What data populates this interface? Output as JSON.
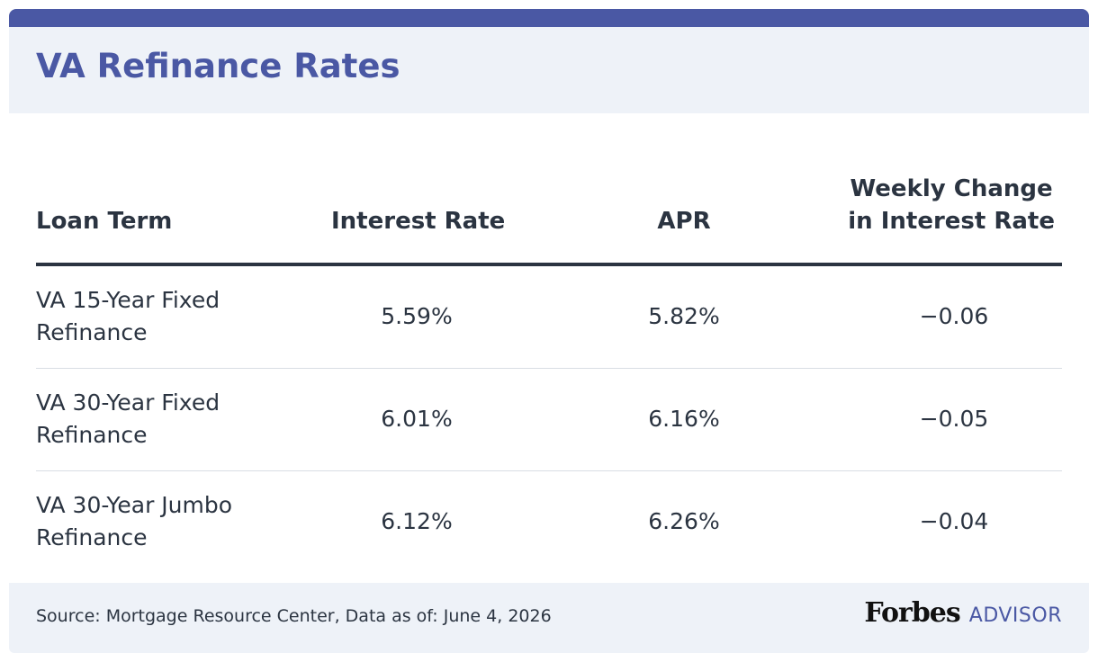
{
  "header": {
    "title": "VA Refinance Rates"
  },
  "table": {
    "columns": {
      "loan_term": "Loan Term",
      "interest_rate": "Interest Rate",
      "apr": "APR",
      "weekly_change_line1": "Weekly Change",
      "weekly_change_line2": "in Interest Rate"
    },
    "rows": [
      {
        "loan_term": "VA 15-Year Fixed Refinance",
        "interest_rate": "5.59%",
        "apr": "5.82%",
        "weekly_change": "−0.06"
      },
      {
        "loan_term": "VA 30-Year Fixed Refinance",
        "interest_rate": "6.01%",
        "apr": "6.16%",
        "weekly_change": "−0.05"
      },
      {
        "loan_term": "VA 30-Year Jumbo Refinance",
        "interest_rate": "6.12%",
        "apr": "6.26%",
        "weekly_change": "−0.04"
      }
    ]
  },
  "footer": {
    "source": "Source: Mortgage Resource Center, Data as of: June 4, 2026",
    "brand_name": "Forbes",
    "brand_suffix": "ADVISOR"
  },
  "colors": {
    "accent": "#4a58a4",
    "header_bg": "#eef2f8",
    "text": "#2b3441"
  }
}
